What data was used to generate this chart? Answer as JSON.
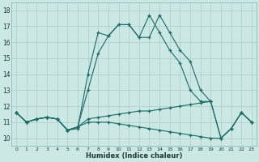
{
  "bg_color": "#cce8e5",
  "grid_color": "#aaccca",
  "line_color": "#1a6b63",
  "xlabel": "Humidex (Indice chaleur)",
  "xlim": [
    -0.5,
    23.5
  ],
  "ylim": [
    9.5,
    18.5
  ],
  "xticks": [
    0,
    1,
    2,
    3,
    4,
    5,
    6,
    7,
    8,
    9,
    10,
    11,
    12,
    13,
    14,
    15,
    16,
    17,
    18,
    19,
    20,
    21,
    22,
    23
  ],
  "yticks": [
    10,
    11,
    12,
    13,
    14,
    15,
    16,
    17,
    18
  ],
  "series": [
    {
      "x": [
        0,
        1,
        2,
        3,
        4,
        5,
        6,
        7,
        8,
        9,
        10,
        11,
        12,
        13,
        14,
        15,
        16,
        17,
        18,
        19
      ],
      "y": [
        11.6,
        11.0,
        11.2,
        11.3,
        11.2,
        10.5,
        10.6,
        14.0,
        16.6,
        16.4,
        17.1,
        17.1,
        16.3,
        17.7,
        16.6,
        15.5,
        14.7,
        13.0,
        12.3,
        12.3
      ]
    },
    {
      "x": [
        0,
        1,
        2,
        3,
        4,
        5,
        6,
        7,
        8,
        9,
        10,
        11,
        12,
        13,
        14,
        15,
        16,
        17,
        18,
        19,
        20,
        21,
        22,
        23
      ],
      "y": [
        11.6,
        11.0,
        11.2,
        11.3,
        11.2,
        10.5,
        10.7,
        13.0,
        15.3,
        16.4,
        17.1,
        17.1,
        16.3,
        16.3,
        17.7,
        16.6,
        15.5,
        14.8,
        13.0,
        12.3,
        10.0,
        10.6,
        11.6,
        11.0
      ]
    },
    {
      "x": [
        0,
        1,
        2,
        3,
        4,
        5,
        6,
        7,
        8,
        9,
        10,
        11,
        12,
        13,
        14,
        15,
        16,
        17,
        18,
        19,
        20,
        21,
        22,
        23
      ],
      "y": [
        11.6,
        11.0,
        11.2,
        11.3,
        11.2,
        10.5,
        10.7,
        11.2,
        11.3,
        11.4,
        11.5,
        11.6,
        11.7,
        11.7,
        11.8,
        11.9,
        12.0,
        12.1,
        12.2,
        12.3,
        10.0,
        10.6,
        11.6,
        11.0
      ]
    },
    {
      "x": [
        0,
        1,
        2,
        3,
        4,
        5,
        6,
        7,
        8,
        9,
        10,
        11,
        12,
        13,
        14,
        15,
        16,
        17,
        18,
        19,
        20,
        21,
        22,
        23
      ],
      "y": [
        11.6,
        11.0,
        11.2,
        11.3,
        11.2,
        10.5,
        10.7,
        11.0,
        11.0,
        11.0,
        10.9,
        10.8,
        10.7,
        10.6,
        10.5,
        10.4,
        10.3,
        10.2,
        10.1,
        10.0,
        10.0,
        10.6,
        11.6,
        11.0
      ]
    }
  ]
}
